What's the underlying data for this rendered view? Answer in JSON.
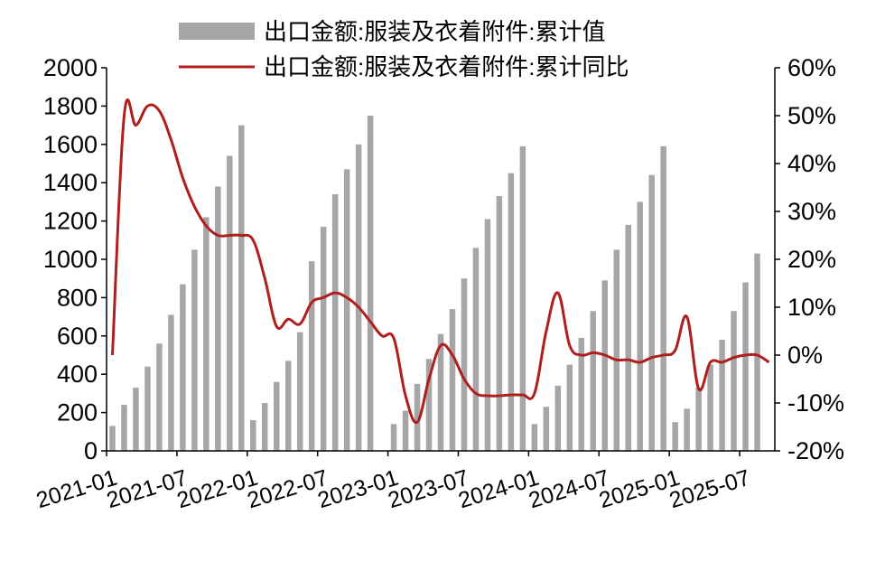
{
  "chart_data": {
    "type": "bar+line",
    "legend": {
      "placement": "top-center",
      "items": [
        {
          "label": "出口金额:服装及衣着附件:累计值",
          "kind": "bar",
          "color": "#a6a6a6"
        },
        {
          "label": "出口金额:服装及衣着附件:累计同比",
          "kind": "line",
          "color": "#b01e1e"
        }
      ]
    },
    "x_tick_labels": [
      "2021-01",
      "2021-07",
      "2022-01",
      "2022-07",
      "2023-01",
      "2023-07",
      "2024-01",
      "2024-07",
      "2025-01",
      "2025-07"
    ],
    "y_left": {
      "min": 0,
      "max": 2000,
      "ticks": [
        "0",
        "200",
        "400",
        "600",
        "800",
        "1000",
        "1200",
        "1400",
        "1600",
        "1800",
        "2000"
      ]
    },
    "y_right": {
      "min": -20,
      "max": 60,
      "ticks": [
        "-20%",
        "-10%",
        "0%",
        "10%",
        "20%",
        "30%",
        "40%",
        "50%",
        "60%"
      ]
    },
    "x": [
      "2021-01",
      "2021-02",
      "2021-03",
      "2021-04",
      "2021-05",
      "2021-06",
      "2021-07",
      "2021-08",
      "2021-09",
      "2021-10",
      "2021-11",
      "2021-12",
      "2022-01",
      "2022-02",
      "2022-03",
      "2022-04",
      "2022-05",
      "2022-06",
      "2022-07",
      "2022-08",
      "2022-09",
      "2022-10",
      "2022-11",
      "2022-12",
      "2023-01",
      "2023-02",
      "2023-03",
      "2023-04",
      "2023-05",
      "2023-06",
      "2023-07",
      "2023-08",
      "2023-09",
      "2023-10",
      "2023-11",
      "2023-12",
      "2024-01",
      "2024-02",
      "2024-03",
      "2024-04",
      "2024-05",
      "2024-06",
      "2024-07",
      "2024-08",
      "2024-09",
      "2024-10",
      "2024-11",
      "2024-12",
      "2025-01",
      "2025-02",
      "2025-03",
      "2025-04",
      "2025-05",
      "2025-06",
      "2025-07",
      "2025-08",
      "2025-09"
    ],
    "series": [
      {
        "name": "出口金额:服装及衣着附件:累计值",
        "type": "bar",
        "axis": "left",
        "color": "#a6a6a6",
        "values": [
          130,
          240,
          330,
          440,
          560,
          710,
          870,
          1050,
          1220,
          1380,
          1540,
          1700,
          160,
          250,
          360,
          470,
          620,
          990,
          1170,
          1340,
          1470,
          1600,
          1750,
          null,
          140,
          210,
          350,
          480,
          610,
          740,
          900,
          1060,
          1210,
          1330,
          1450,
          1590,
          140,
          230,
          340,
          450,
          590,
          730,
          890,
          1050,
          1180,
          1300,
          1440,
          1590,
          150,
          220,
          330,
          450,
          580,
          730,
          880,
          1030,
          null
        ]
      },
      {
        "name": "出口金额:服装及衣着附件:累计同比",
        "type": "line",
        "axis": "right",
        "color": "#b01e1e",
        "values": [
          0,
          50,
          48,
          52,
          51,
          45,
          37,
          31,
          27,
          25,
          25,
          25,
          24,
          16,
          6,
          7.5,
          6.5,
          11,
          12,
          13,
          12,
          10,
          7,
          4,
          3.5,
          -8.5,
          -14,
          -5,
          2,
          0,
          -5,
          -8,
          -8.5,
          -8.5,
          -8.3,
          -8.3,
          -8,
          5,
          13,
          2,
          0,
          0.5,
          0,
          -1,
          -1,
          -1.5,
          -0.5,
          0,
          1,
          8,
          -7,
          -1.5,
          -1.5,
          -0.5,
          0,
          0,
          -1.5
        ]
      }
    ]
  }
}
